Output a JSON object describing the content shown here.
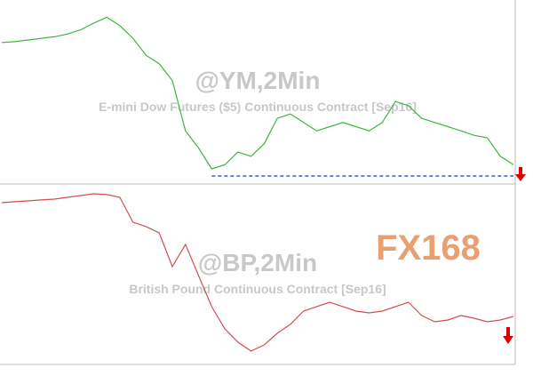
{
  "chart_data": [
    {
      "type": "line",
      "title": "@YM,2Min",
      "subtitle": "E-mini Dow Futures ($5) Continuous Contract [Sep16]",
      "ylim": [
        17330,
        18050
      ],
      "reference_line": 17384,
      "series": [
        {
          "color": "#3cb83c",
          "values": [
            17896,
            17899,
            17906,
            17913,
            17919,
            17930,
            17947,
            17974,
            17998,
            17964,
            17913,
            17844,
            17810,
            17742,
            17538,
            17469,
            17384,
            17401,
            17452,
            17435,
            17486,
            17589,
            17606,
            17572,
            17538,
            17555,
            17572,
            17555,
            17538,
            17572,
            17657,
            17640,
            17589,
            17572,
            17555,
            17538,
            17520,
            17510,
            17435,
            17401
          ]
        }
      ]
    },
    {
      "type": "line",
      "title": "@BP,2Min",
      "subtitle": "British Pound Continuous Contract [Sep16]",
      "ylim": [
        1.32,
        1.51
      ],
      "series": [
        {
          "color": "#d05050",
          "values": [
            1.4929,
            1.4939,
            1.4948,
            1.4958,
            1.4967,
            1.4986,
            1.5005,
            1.5024,
            1.5015,
            1.4986,
            1.472,
            1.4673,
            1.4606,
            1.4245,
            1.4483,
            1.415,
            1.3818,
            1.358,
            1.3438,
            1.3343,
            1.3409,
            1.3533,
            1.3628,
            1.377,
            1.3818,
            1.3865,
            1.3818,
            1.377,
            1.3751,
            1.377,
            1.3818,
            1.3865,
            1.3723,
            1.3656,
            1.3675,
            1.3723,
            1.3694,
            1.3656,
            1.3675,
            1.3713
          ]
        }
      ]
    },
    {
      "type": "watermark",
      "title": "FX168"
    }
  ]
}
